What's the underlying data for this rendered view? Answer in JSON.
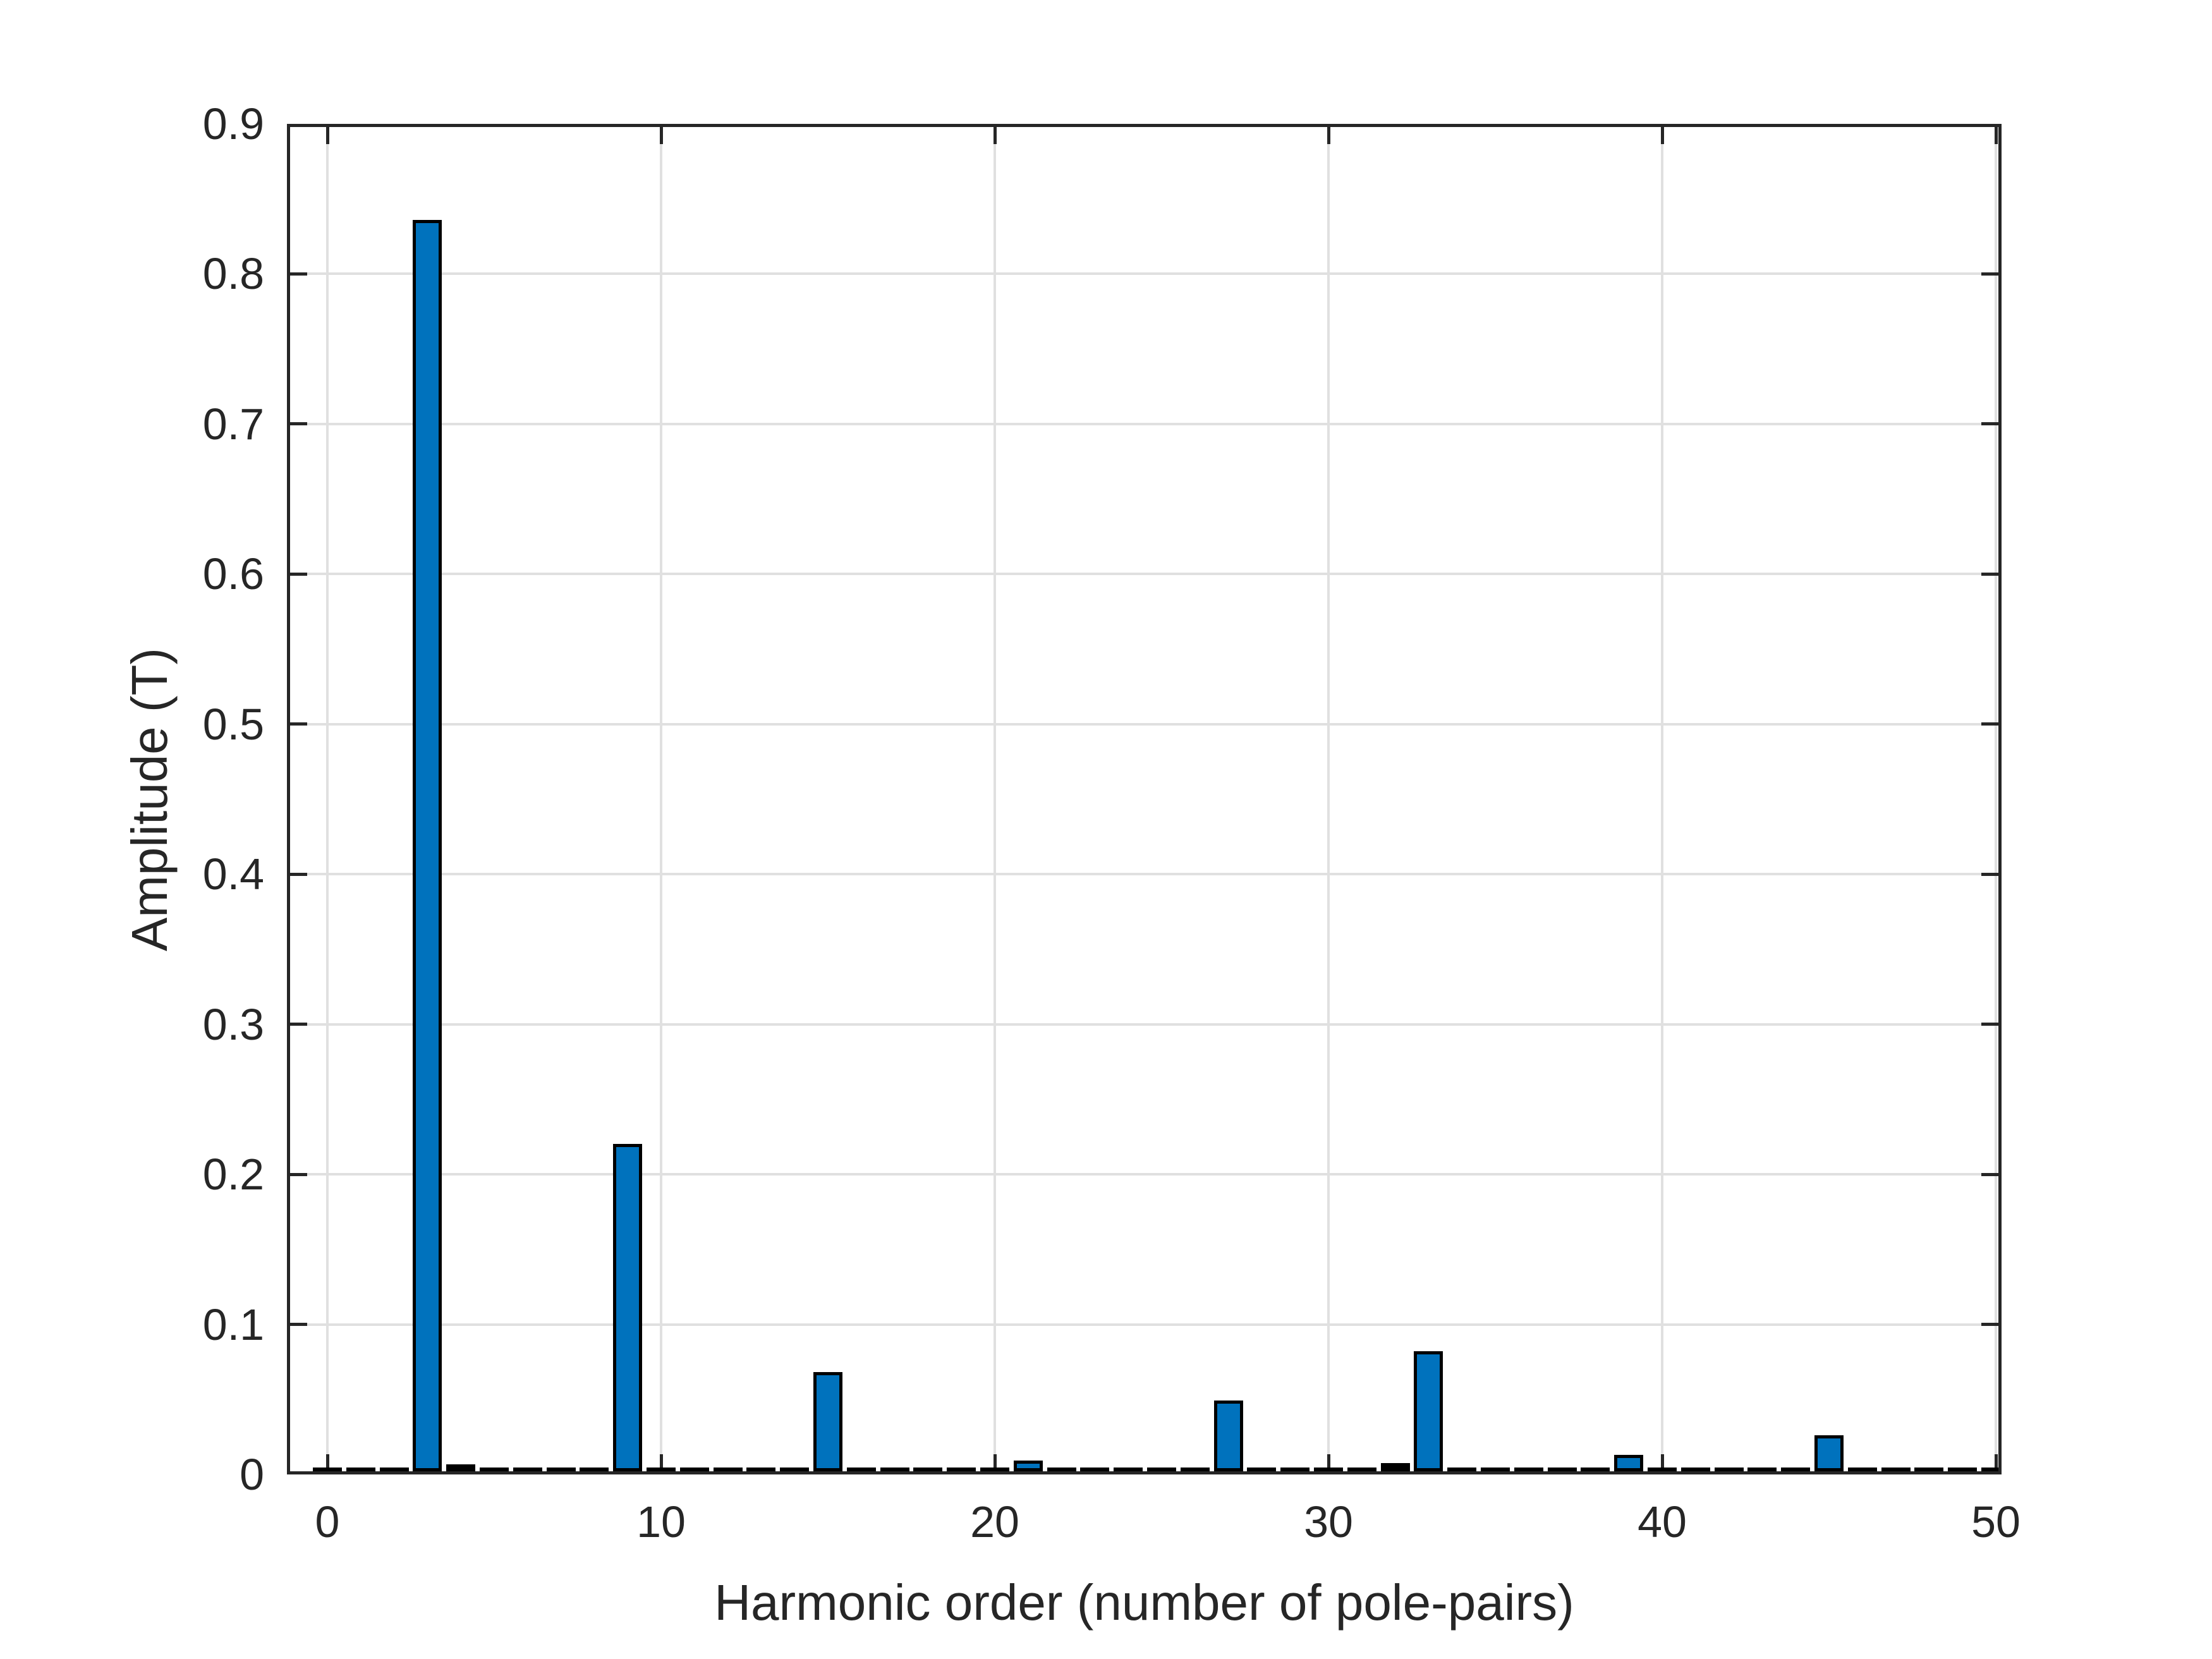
{
  "figure": {
    "background_color": "#FFFFFF"
  },
  "axes": {
    "x_label": "Harmonic order (number of pole-pairs)",
    "y_label": "Amplitude (T)",
    "x_tick_labels": [
      "0",
      "10",
      "20",
      "30",
      "40",
      "50"
    ],
    "y_tick_labels": [
      "0",
      "0.1",
      "0.2",
      "0.3",
      "0.4",
      "0.5",
      "0.6",
      "0.7",
      "0.8",
      "0.9"
    ],
    "colors": {
      "axis": "#262626",
      "grid": "#E0E0E0",
      "tick_label": "#262626",
      "bar_fill": "#0072BD",
      "bar_edge": "#000000"
    }
  },
  "chart_data": {
    "type": "bar",
    "title": "",
    "xlabel": "Harmonic order (number of pole-pairs)",
    "ylabel": "Amplitude (T)",
    "xlim": [
      -1.2,
      50.2
    ],
    "ylim": [
      0,
      0.9
    ],
    "x_ticks": [
      0,
      10,
      20,
      30,
      40,
      50
    ],
    "y_ticks": [
      0,
      0.1,
      0.2,
      0.3,
      0.4,
      0.5,
      0.6,
      0.7,
      0.8,
      0.9
    ],
    "grid": true,
    "legend": false,
    "bar_width_units": 0.8,
    "x": [
      0,
      1,
      2,
      3,
      4,
      5,
      6,
      7,
      8,
      9,
      10,
      11,
      12,
      13,
      14,
      15,
      16,
      17,
      18,
      19,
      20,
      21,
      22,
      23,
      24,
      25,
      26,
      27,
      28,
      29,
      30,
      31,
      32,
      33,
      34,
      35,
      36,
      37,
      38,
      39,
      40,
      41,
      42,
      43,
      44,
      45,
      46,
      47,
      48,
      49,
      50
    ],
    "values": [
      0,
      0,
      0,
      0.834,
      0.002,
      0,
      0,
      0,
      0,
      0.218,
      0,
      0,
      0,
      0,
      0,
      0.066,
      0,
      0,
      0,
      0,
      0,
      0.007,
      0,
      0,
      0,
      0,
      0,
      0.047,
      0,
      0,
      0,
      0,
      0.003,
      0.08,
      0,
      0,
      0,
      0,
      0,
      0.011,
      0,
      0,
      0,
      0,
      0,
      0.024,
      0,
      0,
      0,
      0,
      0
    ],
    "main_peaks": [
      {
        "x": 3,
        "value": 0.834
      },
      {
        "x": 9,
        "value": 0.218
      },
      {
        "x": 15,
        "value": 0.066
      },
      {
        "x": 21,
        "value": 0.007
      },
      {
        "x": 27,
        "value": 0.047
      },
      {
        "x": 33,
        "value": 0.08
      },
      {
        "x": 39,
        "value": 0.011
      },
      {
        "x": 45,
        "value": 0.024
      }
    ],
    "note": "All other integer harmonic orders have near-zero amplitude bars visible as dashes along the baseline."
  }
}
